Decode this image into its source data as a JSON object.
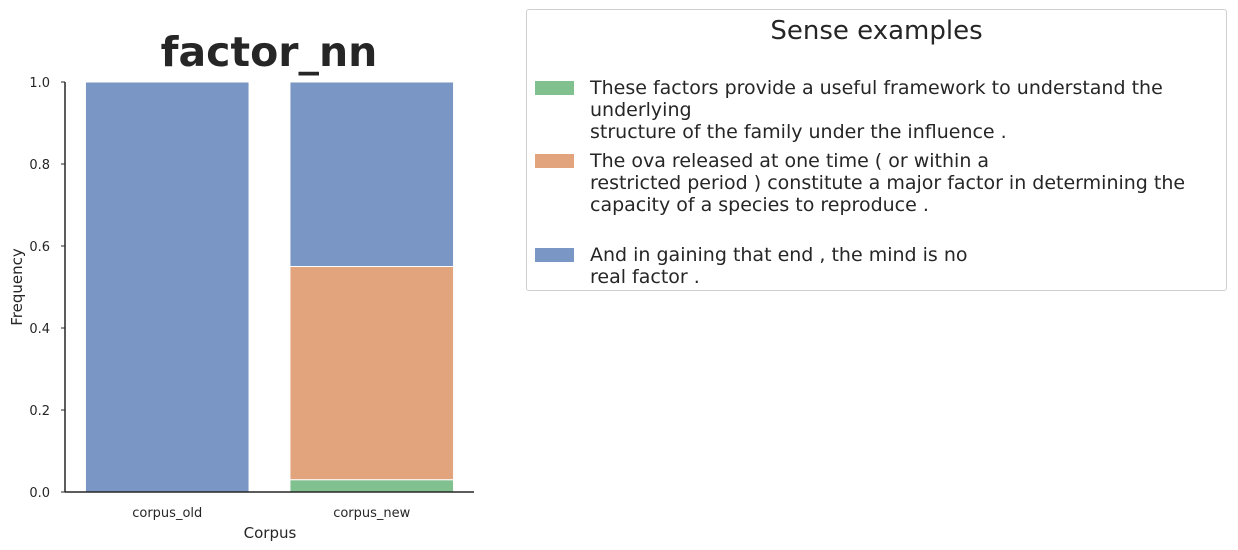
{
  "chart_data": {
    "type": "bar",
    "stacked": true,
    "title": "factor_nn",
    "xlabel": "Corpus",
    "ylabel": "Frequency",
    "ylim": [
      0,
      1.0
    ],
    "yticks": [
      "0.0",
      "0.2",
      "0.4",
      "0.6",
      "0.8",
      "1.0"
    ],
    "categories": [
      "corpus_old",
      "corpus_new"
    ],
    "grid": false,
    "legend_placement": "right",
    "series": [
      {
        "name": "These factors provide a useful framework to understand the underlying\nstructure of the family under the influence .",
        "color": "#81c08f",
        "values": [
          0.0,
          0.03
        ]
      },
      {
        "name": "The ova released at one time ( or within a\nrestricted period ) constitute a major factor in determining the\ncapacity of a species to reproduce .",
        "color": "#e2a47d",
        "values": [
          0.0,
          0.52
        ]
      },
      {
        "name": "And in gaining that end , the mind is no\nreal factor .",
        "color": "#7a96c5",
        "values": [
          1.0,
          0.45
        ]
      }
    ]
  },
  "legend": {
    "title": "Sense examples"
  }
}
